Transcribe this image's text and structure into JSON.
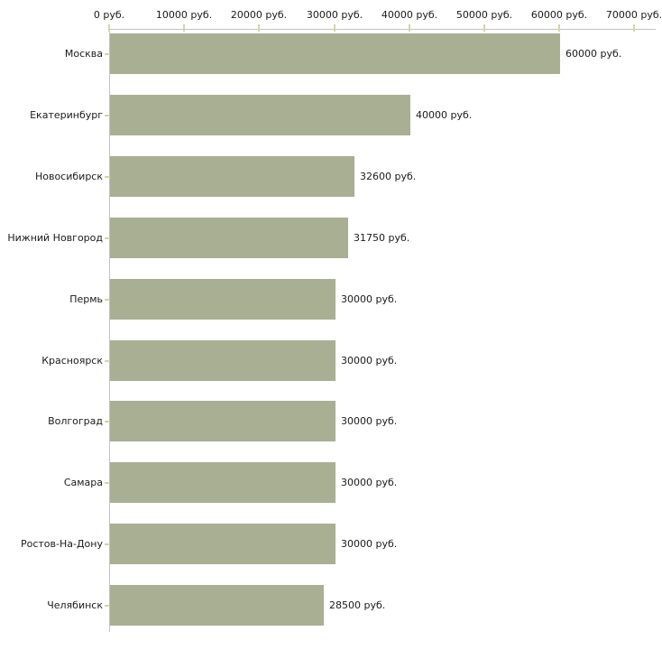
{
  "chart_data": {
    "type": "bar",
    "orientation": "horizontal",
    "title": "",
    "xlabel": "",
    "ylabel": "",
    "categories": [
      "Москва",
      "Екатеринбург",
      "Новосибирск",
      "Нижний Новгород",
      "Пермь",
      "Красноярск",
      "Волгоград",
      "Самара",
      "Ростов-На-Дону",
      "Челябинск"
    ],
    "values": [
      60000,
      40000,
      32600,
      31750,
      30000,
      30000,
      30000,
      30000,
      30000,
      28500
    ],
    "value_labels": [
      "60000 руб.",
      "40000 руб.",
      "32600 руб.",
      "31750 руб.",
      "30000 руб.",
      "30000 руб.",
      "30000 руб.",
      "30000 руб.",
      "30000 руб.",
      "28500 руб."
    ],
    "x_axis": {
      "position": "top",
      "min": 0,
      "max": 70000,
      "ticks": [
        0,
        10000,
        20000,
        30000,
        40000,
        50000,
        60000,
        70000
      ],
      "tick_labels": [
        "0 руб.",
        "10000 руб.",
        "20000 руб.",
        "30000 руб.",
        "40000 руб.",
        "50000 руб.",
        "60000 руб.",
        "70000 руб."
      ]
    },
    "legend": false,
    "grid": false,
    "colors": {
      "bar": "#a9af93",
      "axis_line": "#c2c2c2",
      "tick": "#d9d3a6",
      "text": "#1a1a1a",
      "background": "#ffffff"
    }
  }
}
